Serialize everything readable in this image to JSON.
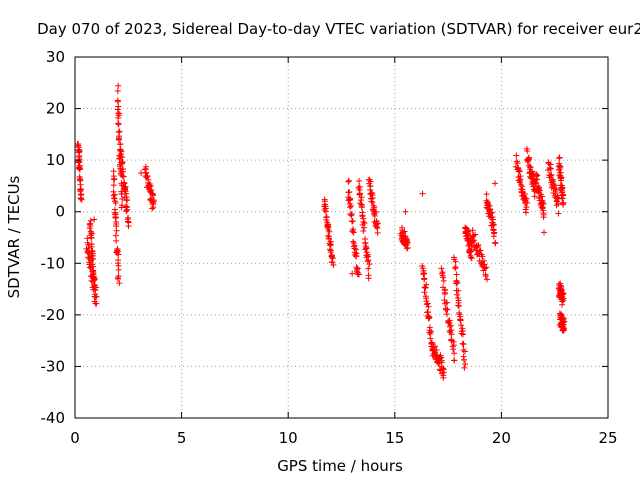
{
  "chart_data": {
    "type": "scatter",
    "title": "Day 070 of 2023, Sidereal Day-to-day VTEC variation (SDTVAR) for receiver eur2",
    "xlabel": "GPS time / hours",
    "ylabel": "SDTVAR / TECUs",
    "xlim": [
      0,
      25
    ],
    "ylim": [
      -40,
      30
    ],
    "xticks": [
      0,
      5,
      10,
      15,
      20,
      25
    ],
    "yticks": [
      -40,
      -30,
      -20,
      -10,
      0,
      10,
      20,
      30
    ],
    "grid": true,
    "marker": "+",
    "color": "#ff0000",
    "segments": [
      {
        "x0": 0.15,
        "x1": 0.3,
        "y_start": 14,
        "y_end": 2
      },
      {
        "x0": 0.55,
        "x1": 1.0,
        "y_start": -6,
        "y_end": -17
      },
      {
        "x0": 0.7,
        "x1": 0.95,
        "y_start": -2,
        "y_end": -16
      },
      {
        "x0": 1.8,
        "x1": 2.05,
        "y_start": 7,
        "y_end": -13
      },
      {
        "x0": 2.0,
        "x1": 2.2,
        "y_start": 23,
        "y_end": 2
      },
      {
        "x0": 2.15,
        "x1": 2.5,
        "y_start": 12,
        "y_end": -2
      },
      {
        "x0": 3.3,
        "x1": 3.7,
        "y_start": 8,
        "y_end": 1
      },
      {
        "x0": 11.7,
        "x1": 12.1,
        "y_start": 2,
        "y_end": -10
      },
      {
        "x0": 12.8,
        "x1": 13.3,
        "y_start": 5,
        "y_end": -13
      },
      {
        "x0": 13.3,
        "x1": 13.8,
        "y_start": 6,
        "y_end": -12
      },
      {
        "x0": 13.8,
        "x1": 14.2,
        "y_start": 6,
        "y_end": -4
      },
      {
        "x0": 15.3,
        "x1": 15.6,
        "y_start": -4,
        "y_end": -6
      },
      {
        "x0": 16.3,
        "x1": 16.8,
        "y_start": -10,
        "y_end": -28
      },
      {
        "x0": 16.8,
        "x1": 17.3,
        "y_start": -26,
        "y_end": -31
      },
      {
        "x0": 17.2,
        "x1": 17.8,
        "y_start": -12,
        "y_end": -28
      },
      {
        "x0": 17.8,
        "x1": 18.3,
        "y_start": -10,
        "y_end": -30
      },
      {
        "x0": 18.3,
        "x1": 18.6,
        "y_start": -3,
        "y_end": -8
      },
      {
        "x0": 18.6,
        "x1": 19.3,
        "y_start": -4,
        "y_end": -12
      },
      {
        "x0": 19.3,
        "x1": 19.7,
        "y_start": 3,
        "y_end": -5
      },
      {
        "x0": 20.7,
        "x1": 21.2,
        "y_start": 10,
        "y_end": 0
      },
      {
        "x0": 21.2,
        "x1": 21.6,
        "y_start": 11,
        "y_end": 4
      },
      {
        "x0": 21.6,
        "x1": 22.0,
        "y_start": 7,
        "y_end": 0
      },
      {
        "x0": 22.2,
        "x1": 22.7,
        "y_start": 9,
        "y_end": 1
      },
      {
        "x0": 22.7,
        "x1": 22.9,
        "y_start": 10,
        "y_end": 2
      },
      {
        "x0": 22.7,
        "x1": 22.9,
        "y_start": -15,
        "y_end": -17
      },
      {
        "x0": 22.75,
        "x1": 22.95,
        "y_start": -21,
        "y_end": -22
      }
    ],
    "points": [
      [
        16.3,
        3.5
      ],
      [
        19.7,
        5.5
      ],
      [
        3.1,
        7.5
      ],
      [
        12.85,
        6.0
      ],
      [
        12.9,
        2.5
      ],
      [
        15.5,
        0.0
      ],
      [
        22.0,
        -4.0
      ],
      [
        2.4,
        1.0
      ],
      [
        0.9,
        -1.5
      ],
      [
        13.0,
        -12.0
      ]
    ]
  }
}
